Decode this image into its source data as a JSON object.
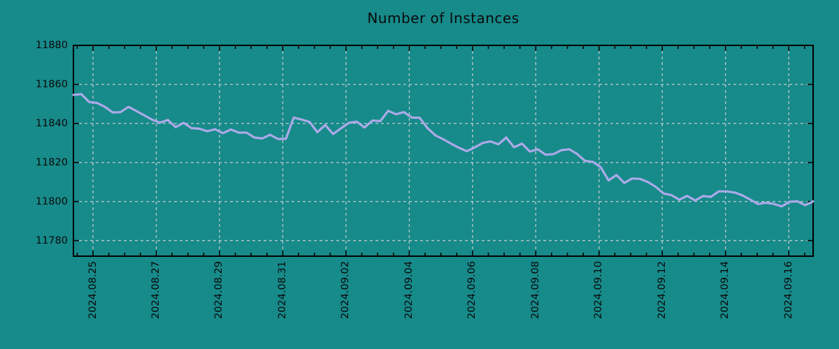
{
  "chart": {
    "title": "Number of Instances",
    "colors": {
      "background": "#178a8a",
      "line": "#abaae8",
      "grid": "#c3cccc",
      "axis": "#000000",
      "text": "#0a0a0a"
    }
  },
  "chart_data": {
    "type": "line",
    "title": "Number of Instances",
    "xlabel": "",
    "ylabel": "",
    "legend": false,
    "grid": "dashed gridlines at major ticks, both axes",
    "x_axis": {
      "tick_labels": [
        "2024.08.25",
        "2024.08.27",
        "2024.08.29",
        "2024.08.31",
        "2024.09.02",
        "2024.09.04",
        "2024.09.06",
        "2024.09.08",
        "2024.09.10",
        "2024.09.12",
        "2024.09.14",
        "2024.09.16"
      ],
      "tick_label_rotation_deg": 90,
      "major_tick_interval_days": 2,
      "minor_tick_interval_days": 0.5,
      "range_days_relative_to_first_label": [
        -0.62,
        22.77
      ]
    },
    "y_axis": {
      "tick_values": [
        11780,
        11800,
        11820,
        11840,
        11860,
        11880
      ],
      "range": [
        11772,
        11880
      ]
    },
    "series": [
      {
        "name": "Number of Instances",
        "sampling": "evenly spaced across x range, approx 6-hour intervals",
        "values": [
          11854.6,
          11855.0,
          11851.0,
          11850.5,
          11848.5,
          11845.6,
          11845.8,
          11848.5,
          11846.4,
          11844.2,
          11841.9,
          11840.4,
          11841.8,
          11838.1,
          11840.3,
          11837.6,
          11837.3,
          11836.0,
          11837.0,
          11835.0,
          11836.9,
          11835.3,
          11835.3,
          11832.8,
          11832.3,
          11834.2,
          11832.0,
          11832.1,
          11843.0,
          11842.0,
          11840.8,
          11835.5,
          11839.2,
          11834.6,
          11837.5,
          11840.3,
          11840.9,
          11837.9,
          11841.5,
          11841.2,
          11846.5,
          11844.7,
          11845.8,
          11843.0,
          11842.9,
          11837.6,
          11833.9,
          11831.9,
          11829.6,
          11827.5,
          11825.8,
          11827.7,
          11830.0,
          11830.8,
          11829.3,
          11832.8,
          11827.8,
          11829.7,
          11825.6,
          11826.8,
          11824.0,
          11824.3,
          11826.3,
          11826.8,
          11824.4,
          11820.9,
          11820.3,
          11817.6,
          11810.8,
          11813.6,
          11809.5,
          11811.8,
          11811.6,
          11810.0,
          11807.5,
          11804.1,
          11803.3,
          11800.9,
          11802.9,
          11800.5,
          11802.8,
          11802.4,
          11805.2,
          11805.2,
          11804.6,
          11803.2,
          11801.0,
          11798.7,
          11799.4,
          11798.8,
          11797.5,
          11799.9,
          11800.1,
          11798.1,
          11800.1
        ]
      }
    ]
  }
}
